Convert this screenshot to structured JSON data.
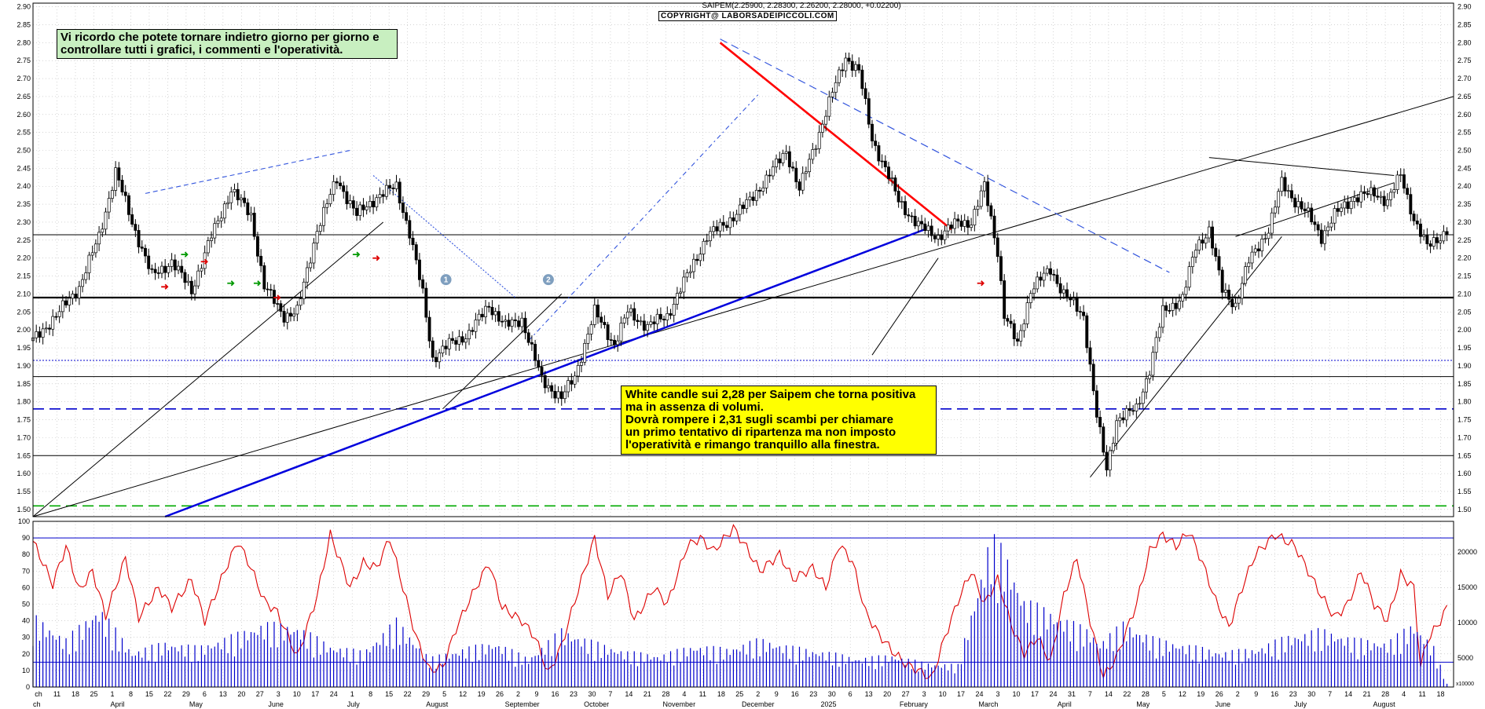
{
  "chart_data": {
    "type": "candlestick",
    "symbol_line": "SAIPEM(2.25900, 2.28300, 2.26200, 2.28000, +0.02200)",
    "copyright": "COPYRIGHT@ LABORSADEIPICCOLI.COM",
    "price_axis": {
      "ticks": [
        "2.90",
        "2.85",
        "2.80",
        "2.75",
        "2.70",
        "2.65",
        "2.60",
        "2.55",
        "2.50",
        "2.45",
        "2.40",
        "2.35",
        "2.30",
        "2.25",
        "2.20",
        "2.15",
        "2.10",
        "2.05",
        "2.00",
        "1.95",
        "1.90",
        "1.85",
        "1.80",
        "1.75",
        "1.70",
        "1.65",
        "1.60",
        "1.55",
        "1.50"
      ],
      "ylim": [
        1.48,
        2.91
      ]
    },
    "oscillator_axis": {
      "ticks": [
        "100",
        "90",
        "80",
        "70",
        "60",
        "50",
        "40",
        "30",
        "20",
        "10",
        "0"
      ],
      "ylim": [
        0,
        100
      ]
    },
    "volume_axis": {
      "ticks": [
        "20000",
        "15000",
        "10000",
        "5000"
      ],
      "unit_label": "x10000"
    },
    "x_tick_labels": [
      "ch",
      "11",
      "18",
      "25",
      "1",
      "8",
      "15",
      "22",
      "29",
      "6",
      "13",
      "20",
      "27",
      "3",
      "10",
      "17",
      "24",
      "1",
      "8",
      "15",
      "22",
      "29",
      "5",
      "12",
      "19",
      "26",
      "2",
      "9",
      "16",
      "23",
      "30",
      "7",
      "14",
      "21",
      "28",
      "4",
      "11",
      "18",
      "25",
      "2",
      "9",
      "16",
      "23",
      "30",
      "6",
      "13",
      "20",
      "27",
      "3",
      "10",
      "17",
      "24",
      "3",
      "10",
      "17",
      "24",
      "31",
      "7",
      "14",
      "22",
      "28",
      "5",
      "12",
      "19",
      "26",
      "2",
      "9",
      "16",
      "23",
      "30",
      "7",
      "14",
      "21",
      "28",
      "4",
      "11",
      "18"
    ],
    "month_labels": [
      "ch",
      "April",
      "May",
      "June",
      "July",
      "August",
      "September",
      "October",
      "November",
      "December",
      "2025",
      "February",
      "March",
      "April",
      "May",
      "June",
      "July",
      "August"
    ],
    "horizontal_levels": [
      {
        "value": 2.09,
        "style": "solid-thick",
        "color": "#000000"
      },
      {
        "value": 1.87,
        "style": "solid",
        "color": "#000000"
      },
      {
        "value": 1.65,
        "style": "solid",
        "color": "#000000"
      },
      {
        "value": 2.265,
        "style": "solid",
        "color": "#000000"
      },
      {
        "value": 1.915,
        "style": "dotted",
        "color": "#0000cc"
      },
      {
        "value": 1.78,
        "style": "dashed",
        "color": "#0000cc"
      },
      {
        "value": 1.51,
        "style": "dashed",
        "color": "#00aa00"
      }
    ],
    "price_path": [
      [
        0,
        1.97
      ],
      [
        8,
        2.05
      ],
      [
        14,
        2.12
      ],
      [
        20,
        2.26
      ],
      [
        25,
        2.44
      ],
      [
        30,
        2.3
      ],
      [
        36,
        2.15
      ],
      [
        42,
        2.19
      ],
      [
        48,
        2.11
      ],
      [
        54,
        2.26
      ],
      [
        60,
        2.39
      ],
      [
        66,
        2.32
      ],
      [
        70,
        2.12
      ],
      [
        76,
        2.04
      ],
      [
        80,
        2.05
      ],
      [
        86,
        2.28
      ],
      [
        92,
        2.42
      ],
      [
        98,
        2.32
      ],
      [
        104,
        2.37
      ],
      [
        110,
        2.4
      ],
      [
        114,
        2.27
      ],
      [
        118,
        2.1
      ],
      [
        121,
        1.92
      ],
      [
        126,
        1.96
      ],
      [
        132,
        1.99
      ],
      [
        138,
        2.07
      ],
      [
        143,
        2.01
      ],
      [
        148,
        2.03
      ],
      [
        154,
        1.86
      ],
      [
        160,
        1.81
      ],
      [
        164,
        1.87
      ],
      [
        170,
        2.05
      ],
      [
        176,
        1.96
      ],
      [
        180,
        2.05
      ],
      [
        186,
        2.01
      ],
      [
        192,
        2.04
      ],
      [
        198,
        2.15
      ],
      [
        204,
        2.26
      ],
      [
        210,
        2.3
      ],
      [
        216,
        2.35
      ],
      [
        222,
        2.42
      ],
      [
        228,
        2.5
      ],
      [
        232,
        2.39
      ],
      [
        238,
        2.55
      ],
      [
        242,
        2.66
      ],
      [
        246,
        2.76
      ],
      [
        250,
        2.72
      ],
      [
        254,
        2.53
      ],
      [
        258,
        2.45
      ],
      [
        262,
        2.36
      ],
      [
        268,
        2.29
      ],
      [
        274,
        2.26
      ],
      [
        280,
        2.3
      ],
      [
        284,
        2.3
      ],
      [
        288,
        2.4
      ],
      [
        292,
        2.22
      ],
      [
        294,
        2.04
      ],
      [
        298,
        1.96
      ],
      [
        302,
        2.11
      ],
      [
        308,
        2.17
      ],
      [
        312,
        2.1
      ],
      [
        318,
        2.04
      ],
      [
        322,
        1.76
      ],
      [
        325,
        1.61
      ],
      [
        328,
        1.75
      ],
      [
        334,
        1.78
      ],
      [
        338,
        1.89
      ],
      [
        342,
        2.05
      ],
      [
        348,
        2.09
      ],
      [
        352,
        2.23
      ],
      [
        356,
        2.28
      ],
      [
        360,
        2.11
      ],
      [
        364,
        2.07
      ],
      [
        368,
        2.19
      ],
      [
        374,
        2.28
      ],
      [
        378,
        2.41
      ],
      [
        382,
        2.36
      ],
      [
        386,
        2.32
      ],
      [
        390,
        2.26
      ],
      [
        394,
        2.32
      ],
      [
        400,
        2.37
      ],
      [
        406,
        2.38
      ],
      [
        410,
        2.36
      ],
      [
        414,
        2.43
      ],
      [
        418,
        2.31
      ],
      [
        422,
        2.23
      ],
      [
        426,
        2.26
      ],
      [
        428,
        2.28
      ]
    ],
    "oscillator_path": [
      [
        0,
        88
      ],
      [
        6,
        62
      ],
      [
        10,
        85
      ],
      [
        14,
        58
      ],
      [
        18,
        70
      ],
      [
        22,
        43
      ],
      [
        28,
        78
      ],
      [
        32,
        42
      ],
      [
        38,
        60
      ],
      [
        42,
        48
      ],
      [
        48,
        65
      ],
      [
        52,
        40
      ],
      [
        58,
        70
      ],
      [
        62,
        88
      ],
      [
        66,
        72
      ],
      [
        70,
        52
      ],
      [
        74,
        45
      ],
      [
        80,
        18
      ],
      [
        86,
        55
      ],
      [
        90,
        92
      ],
      [
        96,
        60
      ],
      [
        100,
        75
      ],
      [
        104,
        72
      ],
      [
        108,
        90
      ],
      [
        112,
        60
      ],
      [
        116,
        30
      ],
      [
        120,
        10
      ],
      [
        124,
        12
      ],
      [
        128,
        35
      ],
      [
        132,
        52
      ],
      [
        138,
        75
      ],
      [
        142,
        48
      ],
      [
        148,
        40
      ],
      [
        152,
        30
      ],
      [
        156,
        8
      ],
      [
        160,
        25
      ],
      [
        164,
        52
      ],
      [
        170,
        90
      ],
      [
        174,
        55
      ],
      [
        178,
        70
      ],
      [
        182,
        40
      ],
      [
        188,
        60
      ],
      [
        192,
        50
      ],
      [
        198,
        85
      ],
      [
        202,
        90
      ],
      [
        206,
        82
      ],
      [
        212,
        96
      ],
      [
        216,
        84
      ],
      [
        220,
        70
      ],
      [
        226,
        80
      ],
      [
        230,
        65
      ],
      [
        236,
        72
      ],
      [
        240,
        60
      ],
      [
        244,
        86
      ],
      [
        248,
        76
      ],
      [
        252,
        45
      ],
      [
        256,
        32
      ],
      [
        260,
        22
      ],
      [
        264,
        14
      ],
      [
        268,
        10
      ],
      [
        272,
        5
      ],
      [
        276,
        30
      ],
      [
        280,
        52
      ],
      [
        284,
        70
      ],
      [
        288,
        50
      ],
      [
        292,
        65
      ],
      [
        296,
        38
      ],
      [
        300,
        20
      ],
      [
        304,
        30
      ],
      [
        308,
        15
      ],
      [
        312,
        55
      ],
      [
        316,
        78
      ],
      [
        320,
        40
      ],
      [
        324,
        6
      ],
      [
        328,
        18
      ],
      [
        334,
        50
      ],
      [
        338,
        82
      ],
      [
        342,
        92
      ],
      [
        346,
        85
      ],
      [
        350,
        94
      ],
      [
        354,
        75
      ],
      [
        358,
        52
      ],
      [
        362,
        36
      ],
      [
        366,
        60
      ],
      [
        370,
        80
      ],
      [
        376,
        92
      ],
      [
        382,
        85
      ],
      [
        386,
        70
      ],
      [
        390,
        55
      ],
      [
        394,
        42
      ],
      [
        398,
        50
      ],
      [
        402,
        70
      ],
      [
        406,
        50
      ],
      [
        410,
        40
      ],
      [
        414,
        68
      ],
      [
        418,
        60
      ],
      [
        420,
        12
      ],
      [
        422,
        28
      ],
      [
        426,
        40
      ],
      [
        428,
        48
      ]
    ],
    "volume_values": [
      [
        0,
        45
      ],
      [
        10,
        30
      ],
      [
        20,
        50
      ],
      [
        30,
        22
      ],
      [
        40,
        28
      ],
      [
        50,
        25
      ],
      [
        60,
        32
      ],
      [
        70,
        40
      ],
      [
        80,
        38
      ],
      [
        90,
        26
      ],
      [
        100,
        22
      ],
      [
        110,
        42
      ],
      [
        120,
        18
      ],
      [
        130,
        24
      ],
      [
        140,
        28
      ],
      [
        150,
        18
      ],
      [
        160,
        36
      ],
      [
        170,
        28
      ],
      [
        180,
        22
      ],
      [
        190,
        20
      ],
      [
        200,
        26
      ],
      [
        210,
        24
      ],
      [
        220,
        30
      ],
      [
        230,
        25
      ],
      [
        240,
        22
      ],
      [
        250,
        18
      ],
      [
        260,
        20
      ],
      [
        270,
        15
      ],
      [
        280,
        14
      ],
      [
        290,
        95
      ],
      [
        294,
        85
      ],
      [
        300,
        55
      ],
      [
        310,
        45
      ],
      [
        320,
        35
      ],
      [
        323,
        28
      ],
      [
        330,
        40
      ],
      [
        340,
        30
      ],
      [
        350,
        26
      ],
      [
        360,
        22
      ],
      [
        370,
        24
      ],
      [
        380,
        32
      ],
      [
        390,
        36
      ],
      [
        400,
        30
      ],
      [
        410,
        28
      ],
      [
        418,
        40
      ],
      [
        424,
        25
      ],
      [
        428,
        2
      ]
    ],
    "volume_average": 15,
    "oscillator_reference_levels": [
      90,
      15
    ]
  },
  "annotations": {
    "green_note": "Vi ricordo che potete tornare indietro giorno per giorno e controllare tutti i grafici, i commenti e l'operatività.",
    "yellow_note": {
      "line1": "White candle sui 2,28 per Saipem che torna positiva",
      "line2": "ma in assenza di volumi.",
      "line3": "Dovrà rompere i 2,31 sugli scambi per chiamare",
      "line4": "un primo tentativo di ripartenza ma non imposto",
      "line5": "l'operatività e rimango tranquillo alla finestra."
    },
    "markers": [
      "1",
      "2"
    ]
  },
  "colors": {
    "price_candle": "#000000",
    "oscillator": "#dd0000",
    "volume": "#0000cc",
    "trend_red": "#ff0000",
    "trend_blue": "#0000dd",
    "grid": "#bbbbbb",
    "green_note_bg": "#c8efc0",
    "yellow_note_bg": "#ffff00",
    "marker_circle": "#7f9fbf"
  }
}
